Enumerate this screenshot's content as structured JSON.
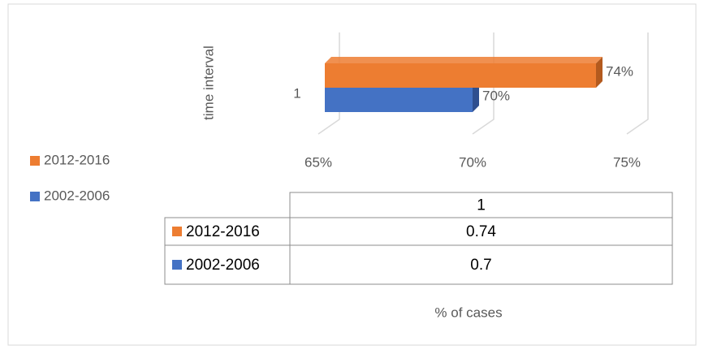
{
  "chart_data": {
    "type": "bar3d_horizontal",
    "categories": [
      "1"
    ],
    "series": [
      {
        "name": "2012-2016",
        "color": "#ed7d31",
        "side_color": "#b35a1e",
        "values": [
          74
        ],
        "value_labels": [
          "74%"
        ],
        "table_labels": [
          "0.74"
        ]
      },
      {
        "name": "2002-2006",
        "color": "#4472c4",
        "side_color": "#2f4f8f",
        "values": [
          70
        ],
        "value_labels": [
          "70%"
        ],
        "table_labels": [
          "0.7"
        ]
      }
    ],
    "y_label": "time interval",
    "x_label": "% of cases",
    "xlim": [
      65,
      75
    ],
    "xticks": [
      {
        "value": 65,
        "label": "65%"
      },
      {
        "value": 70,
        "label": "70%"
      },
      {
        "value": 75,
        "label": "75%"
      }
    ],
    "grid": true,
    "legend": "left"
  }
}
